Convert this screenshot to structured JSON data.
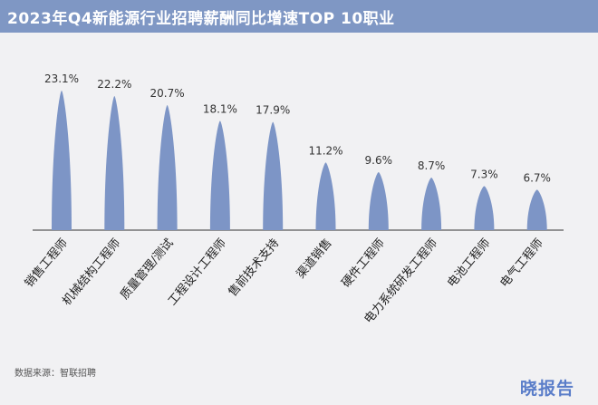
{
  "header": {
    "title": "2023年Q4新能源行业招聘薪酬同比增速TOP 10职业"
  },
  "footer": {
    "source": "数据来源：智联招聘",
    "brand": "晓报告"
  },
  "colors": {
    "header_bg": "#7f97c4",
    "bar": "#7d95c6",
    "axis": "#333333",
    "background": "#f1f1f3"
  },
  "chart_data": {
    "type": "bar",
    "title": "2023年Q4新能源行业招聘薪酬同比增速TOP 10职业",
    "categories": [
      "销售工程师",
      "机械结构工程师",
      "质量管理/测试",
      "工程设计工程师",
      "售前技术支持",
      "渠道销售",
      "硬件工程师",
      "电力系统研发工程师",
      "电池工程师",
      "电气工程师"
    ],
    "values": [
      23.1,
      22.2,
      20.7,
      18.1,
      17.9,
      11.2,
      9.6,
      8.7,
      7.3,
      6.7
    ],
    "data_labels": [
      "23.1%",
      "22.2%",
      "20.7%",
      "18.1%",
      "17.9%",
      "11.2%",
      "9.6%",
      "8.7%",
      "7.3%",
      "6.7%"
    ],
    "ylim": [
      0,
      23.1
    ],
    "grid": false,
    "legend": "none"
  }
}
